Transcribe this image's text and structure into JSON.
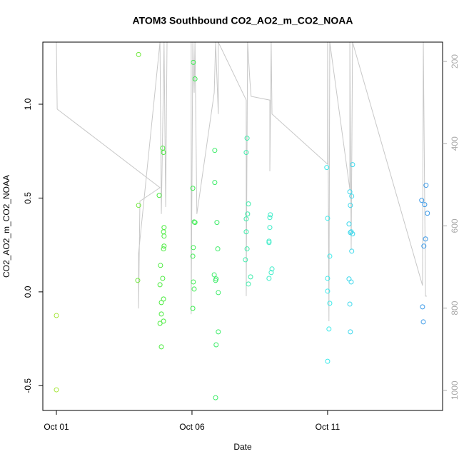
{
  "chart_data": {
    "type": "scatter",
    "title": "ATOM3 Southbound CO2_AO2_m_CO2_NOAA",
    "x_label": "Date",
    "y_label": "CO2_AO2_m_CO2_NOAA",
    "xlim": [
      -0.5,
      14.24
    ],
    "xticks": [
      {
        "value": 0,
        "label": "Oct 01"
      },
      {
        "value": 5,
        "label": "Oct 06"
      },
      {
        "value": 10,
        "label": "Oct 11"
      }
    ],
    "ylim": [
      -0.632,
      1.331
    ],
    "yticks": [
      -0.5,
      {
        "value": 0,
        "label": "0.0"
      },
      0.5,
      {
        "value": 1,
        "label": "1.0"
      }
    ],
    "y2lim": [
      1049,
      153
    ],
    "y2ticks": [
      200,
      400,
      600,
      800,
      1000
    ],
    "series": [
      {
        "color": "#a6e63a",
        "x": [
          0,
          0
        ],
        "values": [
          -0.126,
          -0.522
        ]
      },
      {
        "color": "#6ee83a",
        "x": [
          3.03,
          3.03,
          3.0
        ],
        "values": [
          1.265,
          0.461,
          0.061
        ]
      },
      {
        "color": "#4aeb3e",
        "x": [
          3.79,
          3.84,
          3.82,
          3.87,
          3.87,
          3.82,
          3.95,
          3.95,
          3.92,
          3.95,
          3.97,
          3.95,
          3.97,
          3.97,
          3.92,
          3.95,
          3.87
        ],
        "values": [
          0.514,
          0.141,
          0.038,
          -0.057,
          -0.118,
          -0.168,
          -0.156,
          -0.038,
          0.072,
          0.229,
          0.244,
          0.32,
          0.297,
          0.343,
          0.766,
          0.743,
          -0.293
        ]
      },
      {
        "color": "#3cec50",
        "x": [
          5.05,
          5.11,
          5.03,
          5.08,
          5.11,
          5.05,
          5.03,
          5.05,
          5.08,
          5.03
        ],
        "values": [
          1.223,
          1.135,
          0.552,
          0.373,
          0.37,
          0.236,
          0.19,
          0.053,
          0.015,
          -0.088
        ]
      },
      {
        "color": "#3cec68",
        "x": [
          5.84,
          5.84,
          5.92,
          5.95,
          5.82,
          5.89,
          5.87,
          5.97,
          5.97,
          5.89,
          5.87
        ],
        "values": [
          0.754,
          0.583,
          0.37,
          0.229,
          0.091,
          0.069,
          0.061,
          -0.004,
          -0.213,
          -0.282,
          -0.564
        ]
      },
      {
        "color": "#3cecaa",
        "x": [
          7.03,
          7.0,
          7.08,
          7.05,
          7.0,
          7.0,
          7.03,
          6.97,
          7.16,
          7.08
        ],
        "values": [
          0.819,
          0.743,
          0.469,
          0.415,
          0.389,
          0.32,
          0.229,
          0.171,
          0.08,
          0.042
        ]
      },
      {
        "color": "#3cecc8",
        "x": [
          7.89,
          7.87,
          7.87,
          7.84,
          7.84,
          7.95,
          7.92,
          7.84
        ],
        "values": [
          0.411,
          0.396,
          0.343,
          0.27,
          0.263,
          0.122,
          0.103,
          0.072
        ]
      },
      {
        "color": "#3ceaea",
        "x": [
          9.97,
          10.0,
          10.08,
          10.0,
          10.0,
          10.08,
          10.05,
          10.0
        ],
        "values": [
          0.663,
          0.392,
          0.19,
          0.072,
          0.004,
          -0.061,
          -0.198,
          -0.37
        ]
      },
      {
        "color": "#3cd8ec",
        "x": [
          10.92,
          10.82,
          10.89,
          10.84,
          10.79,
          10.87,
          10.84,
          10.92,
          10.89,
          10.79,
          10.87,
          10.82,
          10.84
        ],
        "values": [
          0.678,
          0.533,
          0.51,
          0.461,
          0.362,
          0.32,
          0.316,
          0.309,
          0.217,
          0.069,
          0.053,
          -0.065,
          -0.213
        ]
      },
      {
        "color": "#3c9ae8",
        "x": [
          13.63,
          13.47,
          13.58,
          13.68,
          13.61,
          13.55,
          13.5,
          13.53
        ],
        "values": [
          0.568,
          0.488,
          0.465,
          0.419,
          0.282,
          0.244,
          -0.08,
          -0.16
        ]
      },
      {
        "type": "line",
        "axis": "y2",
        "color": "#c8c8c8",
        "x": [
          0,
          0.03,
          3.82,
          3.08,
          3.03,
          3.03,
          3.82,
          3.87,
          3.97,
          4.03,
          4.08,
          4.97,
          4.97,
          5.03,
          5.08,
          5.11,
          5.18,
          5.82,
          5.87,
          5.97,
          5.97,
          7.0,
          7.0,
          7.05,
          7.13,
          7.18,
          7.87,
          7.87,
          7.92,
          7.95,
          10.0,
          10.0,
          10.05,
          10.08,
          10.82,
          10.82,
          10.87,
          10.92,
          13.5,
          13.53,
          13.61,
          13.66
        ],
        "values": [
          153,
          316,
          507,
          540,
          801,
          667,
          153,
          571,
          153,
          554,
          153,
          153,
          815,
          153,
          276,
          153,
          571,
          276,
          153,
          328,
          153,
          294,
          771,
          153,
          242,
          285,
          294,
          467,
          153,
          328,
          450,
          153,
          832,
          153,
          511,
          153,
          658,
          153,
          745,
          153,
          771,
          771
        ]
      }
    ]
  }
}
